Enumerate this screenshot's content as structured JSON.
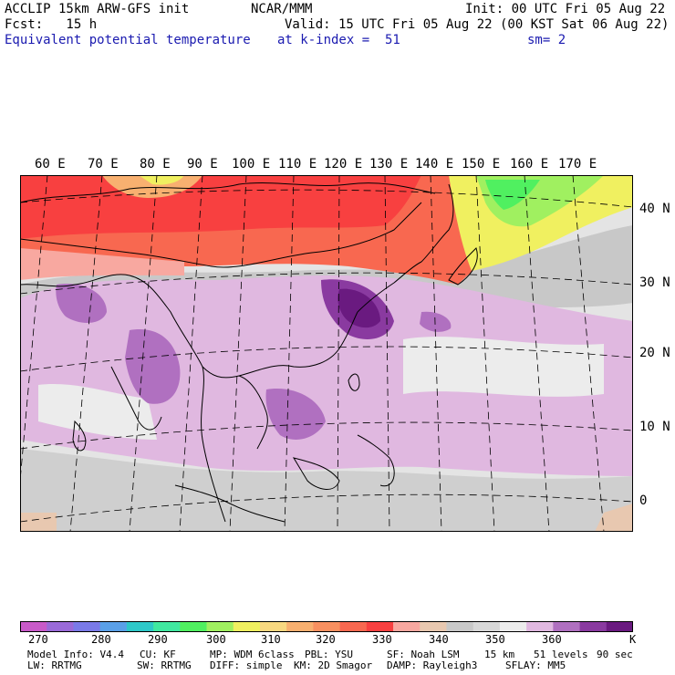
{
  "header": {
    "model": "ACCLIP 15km ARW-GFS init",
    "center": "NCAR/MMM",
    "init": "Init: 00 UTC Fri 05 Aug 22",
    "fcst": "Fcst:   15 h",
    "valid": "Valid: 15 UTC Fri 05 Aug 22 (00 KST Sat 06 Aug 22)",
    "field": "Equivalent potential temperature",
    "level": "at k-index =  51",
    "smooth": "sm= 2"
  },
  "map": {
    "lon_labels": [
      "60 E",
      "70 E",
      "80 E",
      "90 E",
      "100 E",
      "110 E",
      "120 E",
      "130 E",
      "140 E",
      "150 E",
      "160 E",
      "170 E"
    ],
    "lat_labels": [
      "40 N",
      "30 N",
      "20 N",
      "10 N",
      "0"
    ]
  },
  "colorbar": {
    "unit": "K",
    "labels": [
      "270",
      "280",
      "290",
      "300",
      "310",
      "320",
      "330",
      "340",
      "350",
      "360"
    ],
    "colors": [
      "#c85ac8",
      "#9a6ad8",
      "#7a7ae8",
      "#5aa0e8",
      "#2ec8c8",
      "#40e8a0",
      "#50f060",
      "#a0f060",
      "#f0f060",
      "#f8d880",
      "#f8b070",
      "#f89060",
      "#f86850",
      "#f84040",
      "#f8a8a0",
      "#e8c8b0",
      "#c8c8c8",
      "#d8d8d8",
      "#ececec",
      "#e0b8e0",
      "#b070c0",
      "#8a3aa0",
      "#6a1a80"
    ]
  },
  "footer": {
    "line1": [
      {
        "text": "Model Info: V4.4"
      },
      {
        "text": "CU: KF"
      },
      {
        "text": "MP: WDM 6class"
      },
      {
        "text": "PBL: YSU"
      },
      {
        "text": "SF: Noah LSM"
      },
      {
        "text": "15 km"
      },
      {
        "text": "51 levels"
      },
      {
        "text": "90 sec"
      }
    ],
    "line2": [
      {
        "text": "LW: RRTMG"
      },
      {
        "text": "SW: RRTMG"
      },
      {
        "text": "DIFF: simple"
      },
      {
        "text": "KM: 2D Smagor"
      },
      {
        "text": "DAMP: Rayleigh3"
      },
      {
        "text": "SFLAY: MM5"
      }
    ]
  }
}
